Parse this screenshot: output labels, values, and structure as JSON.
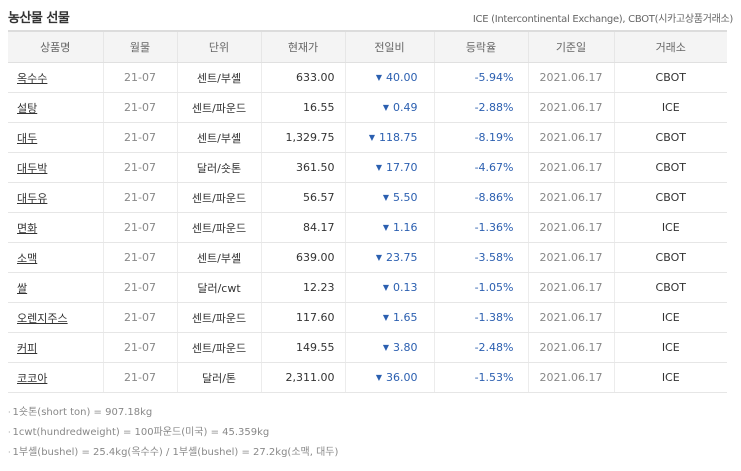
{
  "title": "농산물 선물",
  "source_note": "ICE (Intercontinental Exchange), CBOT(시카고상품거래소)",
  "columns": [
    "상품명",
    "월물",
    "단위",
    "현재가",
    "전일비",
    "등락율",
    "기준일",
    "거래소"
  ],
  "rows": [
    {
      "name": "옥수수",
      "month": "21-07",
      "unit": "센트/부셸",
      "price": "633.00",
      "change": "40.00",
      "rate": "-5.94%",
      "date": "2021.06.17",
      "exchange": "CBOT"
    },
    {
      "name": "설탕",
      "month": "21-07",
      "unit": "센트/파운드",
      "price": "16.55",
      "change": "0.49",
      "rate": "-2.88%",
      "date": "2021.06.17",
      "exchange": "ICE"
    },
    {
      "name": "대두",
      "month": "21-07",
      "unit": "센트/부셸",
      "price": "1,329.75",
      "change": "118.75",
      "rate": "-8.19%",
      "date": "2021.06.17",
      "exchange": "CBOT"
    },
    {
      "name": "대두박",
      "month": "21-07",
      "unit": "달러/숏톤",
      "price": "361.50",
      "change": "17.70",
      "rate": "-4.67%",
      "date": "2021.06.17",
      "exchange": "CBOT"
    },
    {
      "name": "대두유",
      "month": "21-07",
      "unit": "센트/파운드",
      "price": "56.57",
      "change": "5.50",
      "rate": "-8.86%",
      "date": "2021.06.17",
      "exchange": "CBOT"
    },
    {
      "name": "면화",
      "month": "21-07",
      "unit": "센트/파운드",
      "price": "84.17",
      "change": "1.16",
      "rate": "-1.36%",
      "date": "2021.06.17",
      "exchange": "ICE"
    },
    {
      "name": "소맥",
      "month": "21-07",
      "unit": "센트/부셸",
      "price": "639.00",
      "change": "23.75",
      "rate": "-3.58%",
      "date": "2021.06.17",
      "exchange": "CBOT"
    },
    {
      "name": "쌀",
      "month": "21-07",
      "unit": "달러/cwt",
      "price": "12.23",
      "change": "0.13",
      "rate": "-1.05%",
      "date": "2021.06.17",
      "exchange": "CBOT"
    },
    {
      "name": "오렌지주스",
      "month": "21-07",
      "unit": "센트/파운드",
      "price": "117.60",
      "change": "1.65",
      "rate": "-1.38%",
      "date": "2021.06.17",
      "exchange": "ICE"
    },
    {
      "name": "커피",
      "month": "21-07",
      "unit": "센트/파운드",
      "price": "149.55",
      "change": "3.80",
      "rate": "-2.48%",
      "date": "2021.06.17",
      "exchange": "ICE"
    },
    {
      "name": "코코아",
      "month": "21-07",
      "unit": "달러/톤",
      "price": "2,311.00",
      "change": "36.00",
      "rate": "-1.53%",
      "date": "2021.06.17",
      "exchange": "ICE"
    }
  ],
  "down_arrow": "▼",
  "notes": [
    "1숏톤(short ton) = 907.18kg",
    "1cwt(hundredweight) = 100파운드(미국) = 45.359kg",
    "1부셸(bushel) = 25.4kg(옥수수) / 1부셸(bushel) = 27.2kg(소맥, 대두)"
  ],
  "colors": {
    "down": "#2b5fb0",
    "header_bg": "#f4f4f4"
  }
}
